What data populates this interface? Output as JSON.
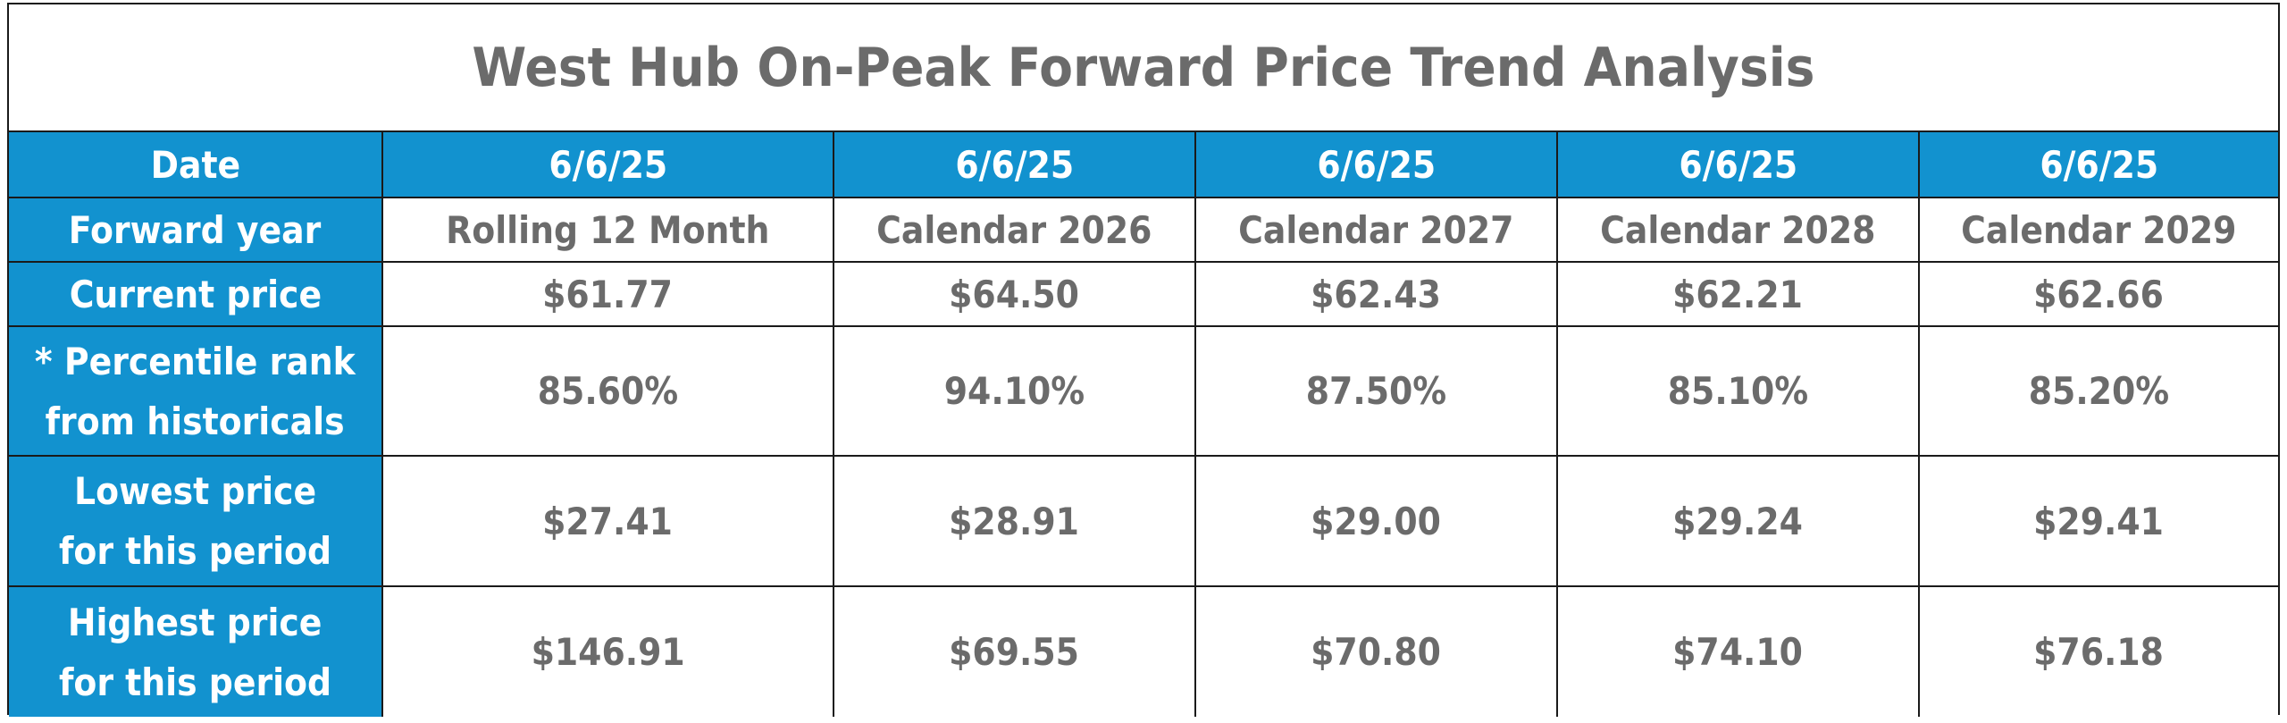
{
  "chart_data": {
    "type": "table",
    "title": "West Hub On-Peak Forward Price Trend Analysis",
    "columns": [
      "Rolling 12 Month",
      "Calendar 2026",
      "Calendar 2027",
      "Calendar 2028",
      "Calendar 2029"
    ],
    "rows": [
      {
        "label": "Date",
        "values": [
          "6/6/25",
          "6/6/25",
          "6/6/25",
          "6/6/25",
          "6/6/25"
        ]
      },
      {
        "label": "Forward year",
        "values": [
          "Rolling 12 Month",
          "Calendar 2026",
          "Calendar 2027",
          "Calendar 2028",
          "Calendar 2029"
        ]
      },
      {
        "label": "Current price",
        "values": [
          "$61.77",
          "$64.50",
          "$62.43",
          "$62.21",
          "$62.66"
        ]
      },
      {
        "label_lines": [
          "* Percentile rank",
          "from historicals"
        ],
        "values": [
          "85.60%",
          "94.10%",
          "87.50%",
          "85.10%",
          "85.20%"
        ]
      },
      {
        "label_lines": [
          "Lowest price",
          "for this period"
        ],
        "values": [
          "$27.41",
          "$28.91",
          "$29.00",
          "$29.24",
          "$29.41"
        ]
      },
      {
        "label_lines": [
          "Highest price",
          "for this period"
        ],
        "values": [
          "$146.91",
          "$69.55",
          "$70.80",
          "$74.10",
          "$76.18"
        ]
      }
    ]
  },
  "colors": {
    "header_blue": "#1292cf",
    "value_gray": "#6b6b6b",
    "border": "#1a1a1a"
  }
}
